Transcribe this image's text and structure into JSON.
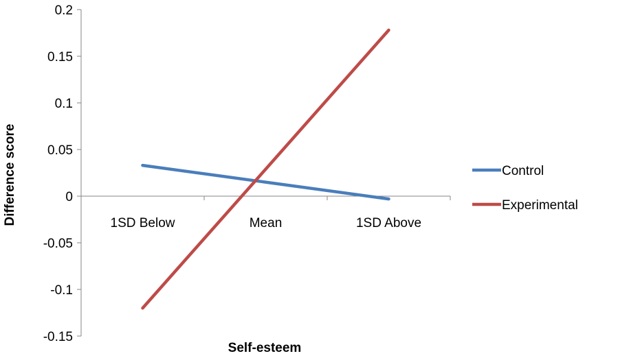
{
  "chart_data": {
    "type": "line",
    "categories": [
      "1SD Below",
      "Mean",
      "1SD Above"
    ],
    "series": [
      {
        "name": "Control",
        "values": [
          0.033,
          0.015,
          -0.003
        ],
        "color": "#4a7ebb"
      },
      {
        "name": "Experimental",
        "values": [
          -0.12,
          0.029,
          0.178
        ],
        "color": "#be4b48"
      }
    ],
    "xlabel": "Self-esteem",
    "ylabel": "Difference score",
    "ylim": [
      -0.15,
      0.2
    ],
    "yticks": [
      -0.15,
      -0.1,
      -0.05,
      0,
      0.05,
      0.1,
      0.15,
      0.2
    ],
    "ytick_labels": [
      "-0.15",
      "-0.1",
      "-0.05",
      "0",
      "0.05",
      "0.1",
      "0.15",
      "0.2"
    ],
    "grid": false,
    "legend": "right",
    "axis_color": "#868686"
  }
}
